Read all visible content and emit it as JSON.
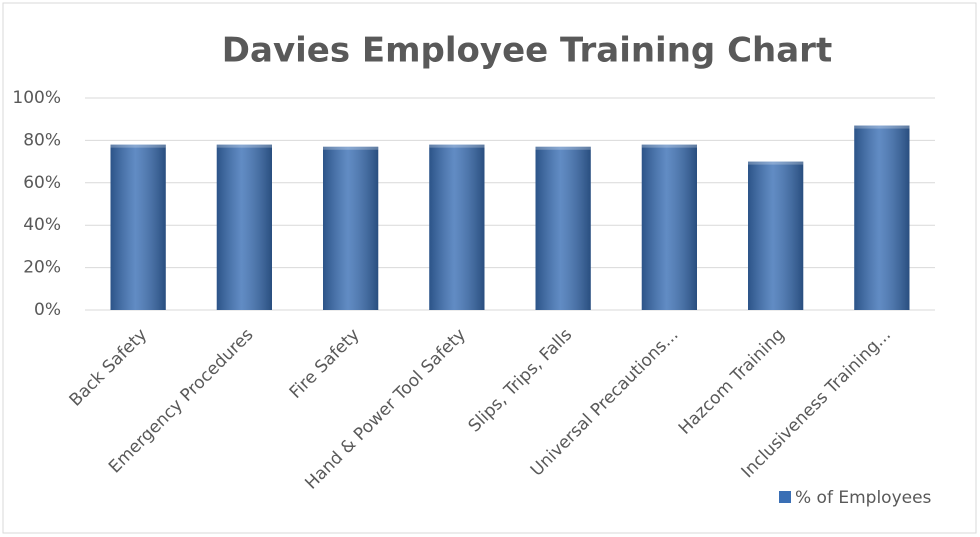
{
  "chart_data": {
    "type": "bar",
    "title": "Davies Employee Training Chart",
    "categories": [
      "Back Safety",
      "Emergency Procedures",
      "Fire Safety",
      "Hand & Power Tool Safety",
      "Slips, Trips, Falls",
      "Universal Precautions...",
      "Hazcom Training",
      "Inclusiveness Training..."
    ],
    "series": [
      {
        "name": "% of Employees",
        "color": "#3a6fb5",
        "values": [
          78,
          78,
          77,
          78,
          77,
          78,
          70,
          87
        ]
      }
    ],
    "ylim": [
      0,
      100
    ],
    "yticks": [
      {
        "value": 0,
        "label": "0%"
      },
      {
        "value": 20,
        "label": "20%"
      },
      {
        "value": 40,
        "label": "40%"
      },
      {
        "value": 60,
        "label": "60%"
      },
      {
        "value": 80,
        "label": "80%"
      },
      {
        "value": 100,
        "label": "100%"
      }
    ],
    "grid": true,
    "legend": "bottom-right"
  }
}
